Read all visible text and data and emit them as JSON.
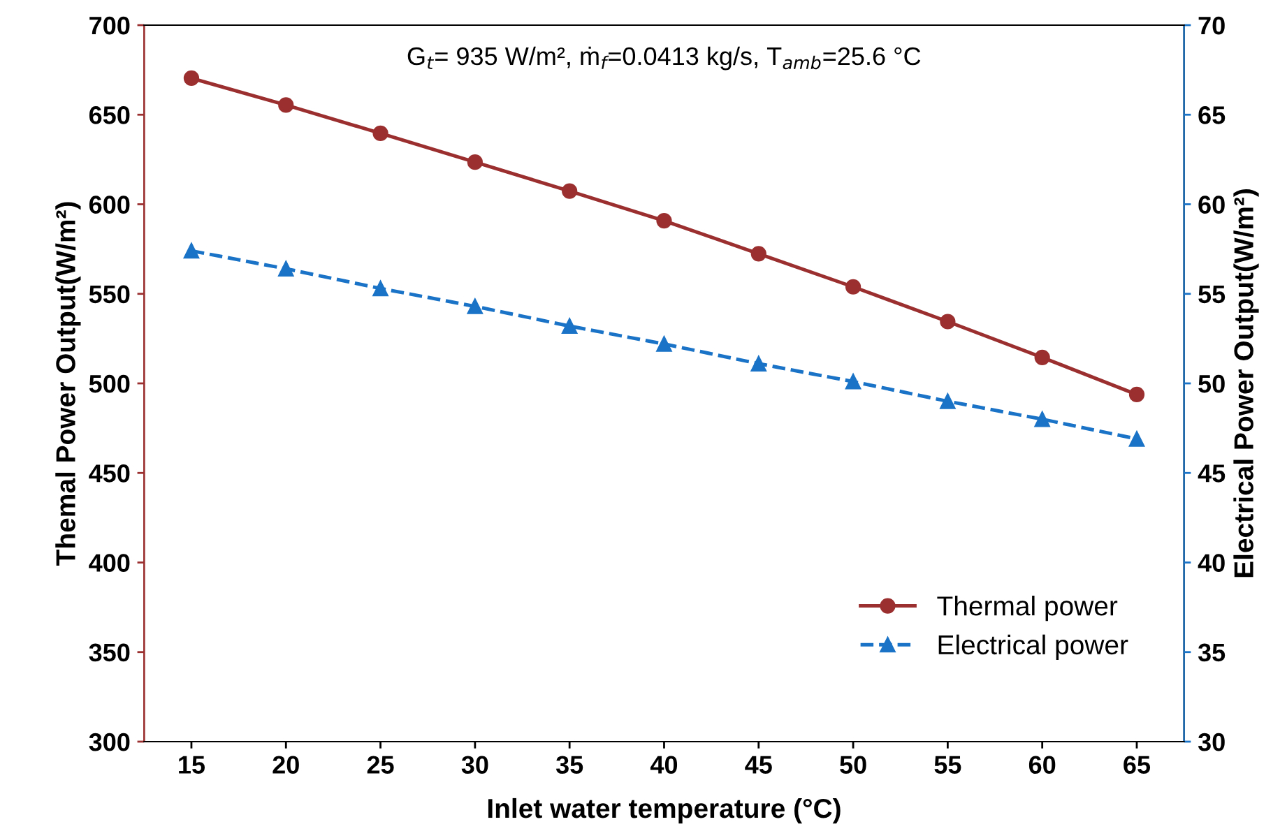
{
  "chart_data": {
    "type": "line",
    "xlabel": "Inlet water temperature (°C)",
    "ylabel": "Themal Power Output(W/m²)",
    "y2label": "Electrical Power Output(W/m²)",
    "annotations": [
      "G$_{t}$= 935 W/m², ṁ$_{f}$=0.0413 kg/s, T$_{amb}$=25.6 °C"
    ],
    "x": [
      15,
      20,
      25,
      30,
      35,
      40,
      45,
      50,
      55,
      60,
      65
    ],
    "series": [
      {
        "name": "Thermal power",
        "color": "#9b2f2f",
        "marker": "circle",
        "line_style": "solid",
        "values": [
          670.4,
          655.4,
          639.6,
          623.5,
          607.4,
          590.8,
          572.4,
          553.9,
          534.5,
          514.5,
          493.8
        ]
      },
      {
        "name": "Electrical power",
        "color": "#1a73c6",
        "marker": "triangle",
        "line_style": "dashed",
        "axis": "y2",
        "values": [
          57.4,
          56.4,
          55.3,
          54.3,
          53.2,
          52.2,
          51.1,
          50.1,
          49.0,
          48.0,
          46.9
        ]
      }
    ],
    "xlim": [
      12.5,
      67.5
    ],
    "xticks": [
      15,
      20,
      25,
      30,
      35,
      40,
      45,
      50,
      55,
      60,
      65
    ],
    "ylim": [
      300,
      700
    ],
    "yticks": [
      300,
      350,
      400,
      450,
      500,
      550,
      600,
      650,
      700
    ],
    "y2lim": [
      30,
      70
    ],
    "y2ticks": [
      30,
      35,
      40,
      45,
      50,
      55,
      60,
      65,
      70
    ],
    "grid": false,
    "legend": "bottom right"
  }
}
